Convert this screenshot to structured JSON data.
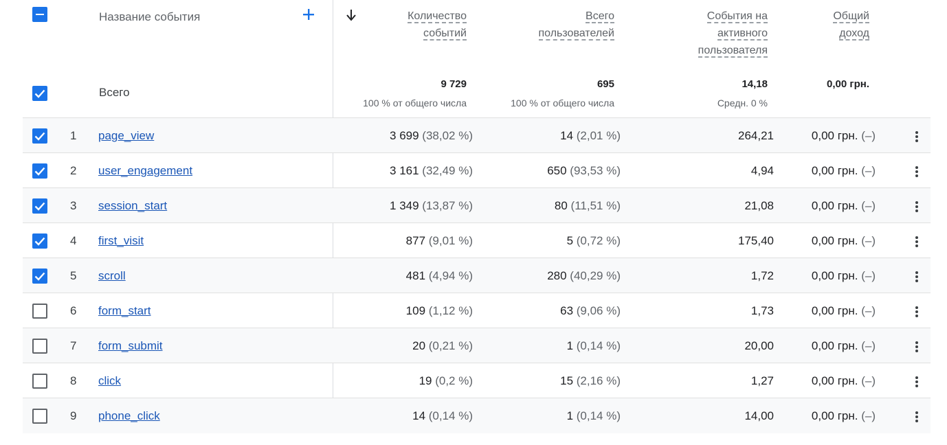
{
  "header": {
    "event_name": "Название события",
    "add_icon": "plus-icon",
    "sort_icon": "arrow-down-icon",
    "columns": [
      {
        "lines": [
          "Количество",
          "событий"
        ]
      },
      {
        "lines": [
          "Всего",
          "пользователей"
        ]
      },
      {
        "lines": [
          "События на",
          "активного",
          "пользователя"
        ]
      },
      {
        "lines": [
          "Общий",
          "доход"
        ]
      }
    ]
  },
  "totals": {
    "label": "Всего",
    "event_count": "9 729",
    "event_count_sub": "100 % от общего числа",
    "users": "695",
    "users_sub": "100 % от общего числа",
    "per_user": "14,18",
    "per_user_sub": "Средн. 0 %",
    "revenue": "0,00 грн."
  },
  "rows": [
    {
      "index": "1",
      "name": "page_view",
      "count": "3 699",
      "count_pct": "(38,02 %)",
      "users": "14",
      "users_pct": "(2,01 %)",
      "per_user": "264,21",
      "revenue": "0,00 грн.",
      "revenue_pct": "(–)",
      "checked": true
    },
    {
      "index": "2",
      "name": "user_engagement",
      "count": "3 161",
      "count_pct": "(32,49 %)",
      "users": "650",
      "users_pct": "(93,53 %)",
      "per_user": "4,94",
      "revenue": "0,00 грн.",
      "revenue_pct": "(–)",
      "checked": true
    },
    {
      "index": "3",
      "name": "session_start",
      "count": "1 349",
      "count_pct": "(13,87 %)",
      "users": "80",
      "users_pct": "(11,51 %)",
      "per_user": "21,08",
      "revenue": "0,00 грн.",
      "revenue_pct": "(–)",
      "checked": true
    },
    {
      "index": "4",
      "name": "first_visit",
      "count": "877",
      "count_pct": "(9,01 %)",
      "users": "5",
      "users_pct": "(0,72 %)",
      "per_user": "175,40",
      "revenue": "0,00 грн.",
      "revenue_pct": "(–)",
      "checked": true
    },
    {
      "index": "5",
      "name": "scroll",
      "count": "481",
      "count_pct": "(4,94 %)",
      "users": "280",
      "users_pct": "(40,29 %)",
      "per_user": "1,72",
      "revenue": "0,00 грн.",
      "revenue_pct": "(–)",
      "checked": true
    },
    {
      "index": "6",
      "name": "form_start",
      "count": "109",
      "count_pct": "(1,12 %)",
      "users": "63",
      "users_pct": "(9,06 %)",
      "per_user": "1,73",
      "revenue": "0,00 грн.",
      "revenue_pct": "(–)",
      "checked": false
    },
    {
      "index": "7",
      "name": "form_submit",
      "count": "20",
      "count_pct": "(0,21 %)",
      "users": "1",
      "users_pct": "(0,14 %)",
      "per_user": "20,00",
      "revenue": "0,00 грн.",
      "revenue_pct": "(–)",
      "checked": false
    },
    {
      "index": "8",
      "name": "click",
      "count": "19",
      "count_pct": "(0,2 %)",
      "users": "15",
      "users_pct": "(2,16 %)",
      "per_user": "1,27",
      "revenue": "0,00 грн.",
      "revenue_pct": "(–)",
      "checked": false
    },
    {
      "index": "9",
      "name": "phone_click",
      "count": "14",
      "count_pct": "(0,14 %)",
      "users": "1",
      "users_pct": "(0,14 %)",
      "per_user": "14,00",
      "revenue": "0,00 грн.",
      "revenue_pct": "(–)",
      "checked": false
    }
  ],
  "colors": {
    "accent": "#1a73e8",
    "link": "#1a56b6",
    "muted": "#5f6368"
  }
}
